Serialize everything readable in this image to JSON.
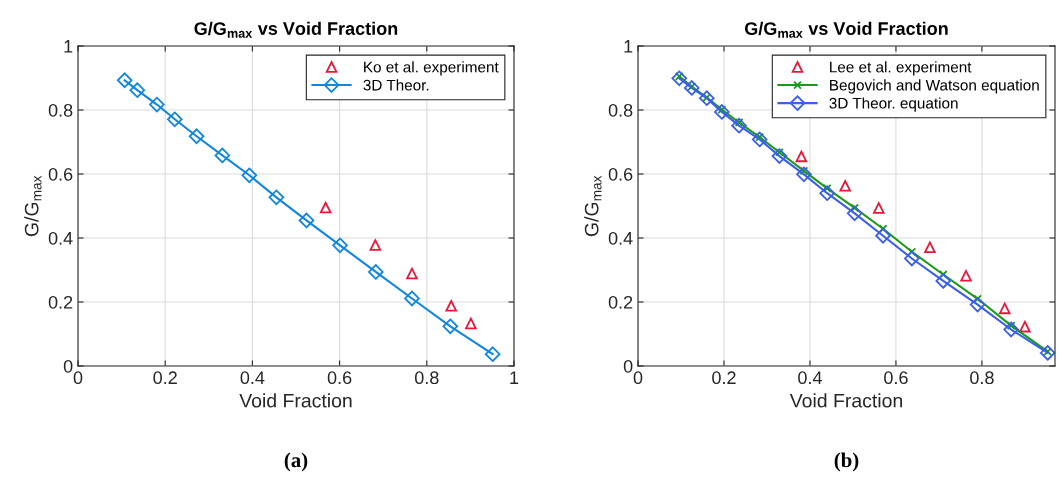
{
  "chart_data": [
    {
      "type": "line",
      "title": "G/G$_{max}$ vs Void Fraction",
      "xlabel": "Void Fraction",
      "ylabel": "G/G$_{max}$",
      "xlim": [
        0,
        1
      ],
      "ylim": [
        0,
        1
      ],
      "xticks": [
        0,
        0.2,
        0.4,
        0.6,
        0.8,
        1
      ],
      "yticks": [
        0,
        0.2,
        0.4,
        0.6,
        0.8,
        1
      ],
      "grid": true,
      "legend": "top right",
      "annotations": [
        "(a)"
      ],
      "series": [
        {
          "name": "Ko et al. experiment",
          "type": "scatter",
          "marker": "triangle",
          "color": "#e8173a",
          "x": [
            0.568,
            0.682,
            0.766,
            0.856,
            0.901
          ],
          "values": [
            0.495,
            0.378,
            0.289,
            0.188,
            0.133
          ]
        },
        {
          "name": "3D Theor.",
          "marker": "diamond",
          "color": "#0f86e0",
          "x": [
            0.107,
            0.136,
            0.181,
            0.222,
            0.272,
            0.331,
            0.393,
            0.455,
            0.524,
            0.601,
            0.683,
            0.766,
            0.854,
            0.951
          ],
          "values": [
            0.893,
            0.862,
            0.817,
            0.771,
            0.718,
            0.658,
            0.596,
            0.527,
            0.455,
            0.377,
            0.294,
            0.211,
            0.124,
            0.037
          ]
        }
      ]
    },
    {
      "type": "line",
      "title": "G/G$_{max}$ vs Void Fraction",
      "xlabel": "Void Fraction",
      "ylabel": "G/G$_{max}$",
      "xlim": [
        0,
        0.97
      ],
      "ylim": [
        0,
        1
      ],
      "xticks": [
        0,
        0.2,
        0.4,
        0.6,
        0.8
      ],
      "yticks": [
        0,
        0.2,
        0.4,
        0.6,
        0.8,
        1
      ],
      "grid": true,
      "legend": "top right",
      "annotations": [
        "(b)"
      ],
      "series": [
        {
          "name": "Lee et al. experiment",
          "type": "scatter",
          "marker": "triangle",
          "color": "#e8173a",
          "x": [
            0.38,
            0.482,
            0.56,
            0.679,
            0.763,
            0.853,
            0.9
          ],
          "values": [
            0.655,
            0.563,
            0.494,
            0.371,
            0.282,
            0.18,
            0.123
          ]
        },
        {
          "name": "Begovich and Watson equation",
          "marker": "cross",
          "color": "#1a9a1a",
          "x": [
            0.096,
            0.125,
            0.16,
            0.195,
            0.235,
            0.283,
            0.329,
            0.386,
            0.44,
            0.504,
            0.57,
            0.637,
            0.71,
            0.79,
            0.868,
            0.953
          ],
          "values": [
            0.905,
            0.873,
            0.839,
            0.801,
            0.761,
            0.715,
            0.668,
            0.61,
            0.555,
            0.494,
            0.429,
            0.357,
            0.286,
            0.21,
            0.126,
            0.045
          ]
        },
        {
          "name": "3D Theor. equation",
          "marker": "diamond",
          "color": "#3a5fe8",
          "x": [
            0.096,
            0.125,
            0.16,
            0.195,
            0.235,
            0.283,
            0.329,
            0.386,
            0.44,
            0.504,
            0.57,
            0.637,
            0.71,
            0.79,
            0.868,
            0.953
          ],
          "values": [
            0.899,
            0.869,
            0.837,
            0.794,
            0.751,
            0.708,
            0.656,
            0.599,
            0.54,
            0.477,
            0.407,
            0.336,
            0.266,
            0.192,
            0.114,
            0.041
          ]
        }
      ]
    }
  ]
}
